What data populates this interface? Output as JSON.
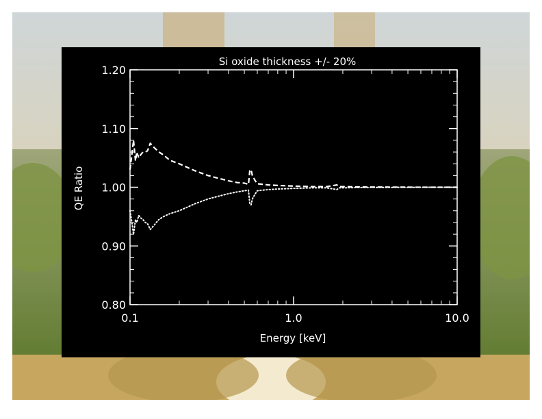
{
  "chart_data": {
    "type": "line",
    "title": "Si oxide thickness +/- 20%",
    "xlabel": "Energy [keV]",
    "ylabel": "QE Ratio",
    "x_scale": "log",
    "xlim": [
      0.1,
      10.0
    ],
    "ylim": [
      0.8,
      1.2
    ],
    "x_ticks": [
      0.1,
      1.0,
      10.0
    ],
    "x_tick_labels": [
      "0.1",
      "1.0",
      "10.0"
    ],
    "y_ticks": [
      0.8,
      0.9,
      1.0,
      1.1,
      1.2
    ],
    "y_tick_labels": [
      "0.80",
      "0.90",
      "1.00",
      "1.10",
      "1.20"
    ],
    "grid": false,
    "series": [
      {
        "style": "dashed",
        "color": "#ffffff",
        "x": [
          0.1,
          0.102,
          0.105,
          0.108,
          0.11,
          0.113,
          0.116,
          0.12,
          0.124,
          0.128,
          0.133,
          0.14,
          0.15,
          0.16,
          0.175,
          0.2,
          0.25,
          0.3,
          0.35,
          0.4,
          0.45,
          0.5,
          0.53,
          0.54,
          0.55,
          0.56,
          0.58,
          0.6,
          0.7,
          0.8,
          1.0,
          1.3,
          1.6,
          1.84,
          1.9,
          2.0,
          2.5,
          3.0,
          4.0,
          5.0,
          7.0,
          10.0
        ],
        "y": [
          1.03,
          1.05,
          1.08,
          1.045,
          1.06,
          1.05,
          1.055,
          1.06,
          1.06,
          1.062,
          1.075,
          1.068,
          1.06,
          1.055,
          1.046,
          1.04,
          1.028,
          1.02,
          1.015,
          1.011,
          1.008,
          1.007,
          1.005,
          1.028,
          1.03,
          1.02,
          1.012,
          1.006,
          1.004,
          1.003,
          1.002,
          1.001,
          1.001,
          1.004,
          1.001,
          1.001,
          1.0005,
          1.0003,
          1.0002,
          1.0001,
          1.0,
          1.0
        ]
      },
      {
        "style": "dotted",
        "color": "#ffffff",
        "x": [
          0.1,
          0.102,
          0.105,
          0.108,
          0.11,
          0.113,
          0.116,
          0.12,
          0.124,
          0.128,
          0.133,
          0.14,
          0.15,
          0.16,
          0.175,
          0.2,
          0.25,
          0.3,
          0.35,
          0.4,
          0.45,
          0.5,
          0.53,
          0.54,
          0.55,
          0.56,
          0.58,
          0.6,
          0.7,
          0.8,
          1.0,
          1.3,
          1.6,
          1.84,
          1.9,
          2.0,
          2.5,
          3.0,
          4.0,
          5.0,
          7.0,
          10.0
        ],
        "y": [
          0.96,
          0.945,
          0.92,
          0.945,
          0.94,
          0.952,
          0.948,
          0.945,
          0.94,
          0.938,
          0.928,
          0.935,
          0.945,
          0.95,
          0.955,
          0.96,
          0.972,
          0.98,
          0.985,
          0.989,
          0.992,
          0.994,
          0.995,
          0.972,
          0.97,
          0.98,
          0.988,
          0.994,
          0.996,
          0.997,
          0.998,
          0.999,
          0.999,
          0.996,
          0.999,
          0.999,
          0.9995,
          0.9997,
          0.9998,
          0.9999,
          1.0,
          1.0
        ]
      }
    ]
  }
}
